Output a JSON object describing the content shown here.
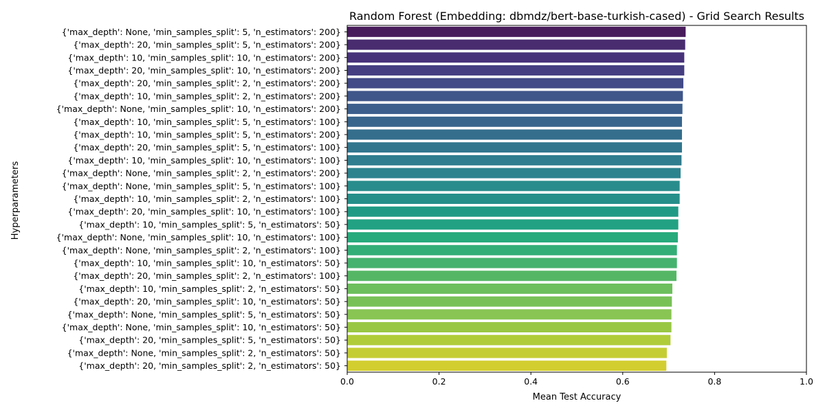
{
  "chart_data": {
    "type": "bar",
    "orientation": "horizontal",
    "title": "Random Forest (Embedding: dbmdz/bert-base-turkish-cased) - Grid Search Results",
    "xlabel": "Mean Test Accuracy",
    "ylabel": "Hyperparameters",
    "xlim": [
      0,
      1
    ],
    "xticks": [
      "0.0",
      "0.2",
      "0.4",
      "0.6",
      "0.8",
      "1.0"
    ],
    "grid": false,
    "colormap": "viridis",
    "categories": [
      "{'max_depth': None, 'min_samples_split': 5, 'n_estimators': 200}",
      "{'max_depth': 20, 'min_samples_split': 5, 'n_estimators': 200}",
      "{'max_depth': 10, 'min_samples_split': 10, 'n_estimators': 200}",
      "{'max_depth': 20, 'min_samples_split': 10, 'n_estimators': 200}",
      "{'max_depth': 20, 'min_samples_split': 2, 'n_estimators': 200}",
      "{'max_depth': 10, 'min_samples_split': 2, 'n_estimators': 200}",
      "{'max_depth': None, 'min_samples_split': 10, 'n_estimators': 200}",
      "{'max_depth': 10, 'min_samples_split': 5, 'n_estimators': 100}",
      "{'max_depth': 10, 'min_samples_split': 5, 'n_estimators': 200}",
      "{'max_depth': 20, 'min_samples_split': 5, 'n_estimators': 100}",
      "{'max_depth': 10, 'min_samples_split': 10, 'n_estimators': 100}",
      "{'max_depth': None, 'min_samples_split': 2, 'n_estimators': 200}",
      "{'max_depth': None, 'min_samples_split': 5, 'n_estimators': 100}",
      "{'max_depth': 10, 'min_samples_split': 2, 'n_estimators': 100}",
      "{'max_depth': 20, 'min_samples_split': 10, 'n_estimators': 100}",
      "{'max_depth': 10, 'min_samples_split': 5, 'n_estimators': 50}",
      "{'max_depth': None, 'min_samples_split': 10, 'n_estimators': 100}",
      "{'max_depth': None, 'min_samples_split': 2, 'n_estimators': 100}",
      "{'max_depth': 10, 'min_samples_split': 10, 'n_estimators': 50}",
      "{'max_depth': 20, 'min_samples_split': 2, 'n_estimators': 100}",
      "{'max_depth': 10, 'min_samples_split': 2, 'n_estimators': 50}",
      "{'max_depth': 20, 'min_samples_split': 10, 'n_estimators': 50}",
      "{'max_depth': None, 'min_samples_split': 5, 'n_estimators': 50}",
      "{'max_depth': None, 'min_samples_split': 10, 'n_estimators': 50}",
      "{'max_depth': 20, 'min_samples_split': 5, 'n_estimators': 50}",
      "{'max_depth': None, 'min_samples_split': 2, 'n_estimators': 50}",
      "{'max_depth': 20, 'min_samples_split': 2, 'n_estimators': 50}"
    ],
    "values": [
      0.737,
      0.736,
      0.734,
      0.734,
      0.732,
      0.731,
      0.73,
      0.729,
      0.729,
      0.729,
      0.728,
      0.726,
      0.724,
      0.724,
      0.721,
      0.721,
      0.72,
      0.718,
      0.718,
      0.717,
      0.708,
      0.707,
      0.706,
      0.706,
      0.704,
      0.696,
      0.695
    ],
    "colors": [
      "#481b5b",
      "#482c6f",
      "#47327a",
      "#453f82",
      "#424a87",
      "#3f568a",
      "#3c5f8c",
      "#38658c",
      "#356e8d",
      "#32768e",
      "#2f7d8e",
      "#2c838e",
      "#298c8c",
      "#268f8a",
      "#219a85",
      "#22a283",
      "#27aa7c",
      "#33ae77",
      "#45b26e",
      "#55b765",
      "#6cbf5c",
      "#78c157",
      "#88c553",
      "#99c744",
      "#b0cc39",
      "#c5cd34",
      "#d3ce30"
    ]
  }
}
